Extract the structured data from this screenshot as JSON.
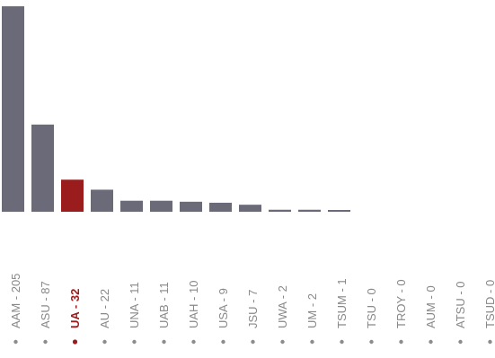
{
  "chart_data": {
    "type": "bar",
    "title": "",
    "xlabel": "",
    "ylabel": "",
    "categories": [
      "AAM",
      "ASU",
      "UA",
      "AU",
      "UNA",
      "UAB",
      "UAH",
      "USA",
      "JSU",
      "UWA",
      "UM",
      "TSUM",
      "TSU",
      "TROY",
      "AUM",
      "ATSU",
      "TSUD"
    ],
    "values": [
      205,
      87,
      32,
      22,
      11,
      11,
      10,
      9,
      7,
      2,
      2,
      1,
      0,
      0,
      0,
      0,
      0
    ],
    "tick_labels": [
      "AAM - 205",
      "ASU - 87",
      "UA - 32",
      "AU - 22",
      "UNA - 11",
      "UAB - 11",
      "UAH - 10",
      "USA - 9",
      "JSU - 7",
      "UWA - 2",
      "UM - 2",
      "TSUM - 1",
      "TSU - 0",
      "TROY - 0",
      "AUM - 0",
      "ATSU - 0",
      "TSUD - 0"
    ],
    "highlight_index": 2,
    "ylim": [
      0,
      205
    ],
    "grid": false,
    "legend": "none",
    "colors": {
      "bar": "#6b6a78",
      "highlight": "#9b1c1c",
      "label": "#888888",
      "label_highlight": "#9b1c1c",
      "dot": "#8c8c8c"
    }
  }
}
